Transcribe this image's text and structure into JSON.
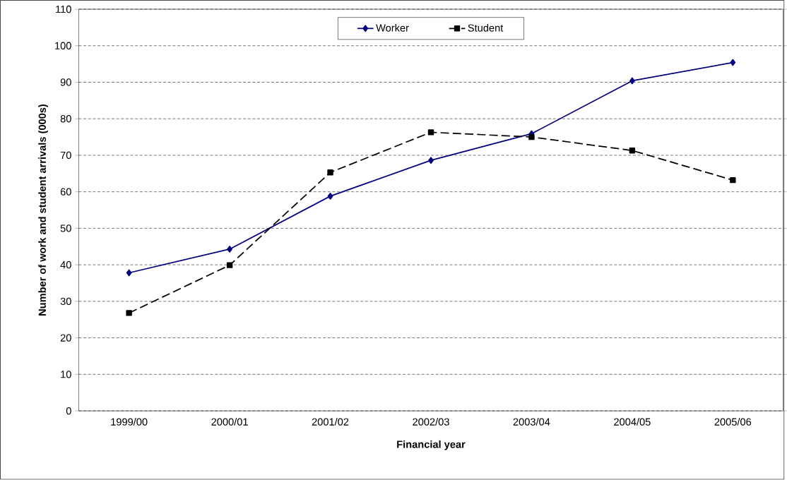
{
  "chart_data": {
    "type": "line",
    "xlabel": "Financial year",
    "ylabel": "Number of work and student arrivals (000s)",
    "categories": [
      "1999/00",
      "2000/01",
      "2001/02",
      "2002/03",
      "2003/04",
      "2004/05",
      "2005/06"
    ],
    "series": [
      {
        "name": "Worker",
        "color": "#000080",
        "marker": "diamond",
        "line_style": "solid",
        "values": [
          37.8,
          44.3,
          58.8,
          68.6,
          75.9,
          90.4,
          95.4
        ]
      },
      {
        "name": "Student",
        "color": "#000000",
        "marker": "square",
        "line_style": "dashed",
        "values": [
          26.8,
          39.9,
          65.3,
          76.3,
          75.0,
          71.3,
          63.2
        ]
      }
    ],
    "ylim": [
      0,
      110
    ],
    "yticks": [
      0,
      10,
      20,
      30,
      40,
      50,
      60,
      70,
      80,
      90,
      100,
      110
    ],
    "grid": "y",
    "legend": "top"
  }
}
